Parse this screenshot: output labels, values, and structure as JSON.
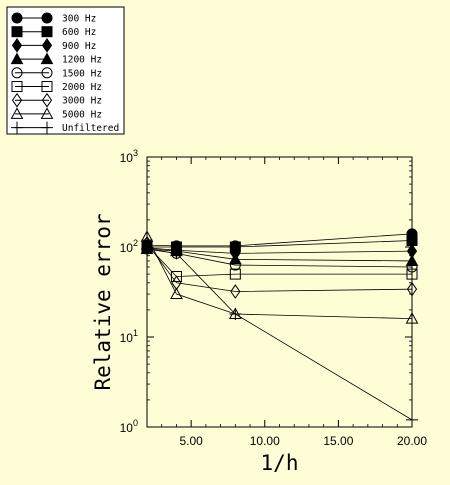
{
  "chart_data": {
    "type": "line",
    "xlabel": "1/h",
    "ylabel": "Relative error",
    "xlim": [
      2,
      20
    ],
    "ylim": [
      1,
      1000
    ],
    "y_scale": "log",
    "x_ticks": [
      5,
      10,
      15,
      20
    ],
    "x_tick_labels": [
      "5.00",
      "10.00",
      "15.00",
      "20.00"
    ],
    "y_ticks": [
      1,
      10,
      100,
      1000
    ],
    "y_tick_base": "10",
    "y_tick_exponents": [
      "0",
      "1",
      "2",
      "3"
    ],
    "grid": false,
    "legend_position": "top-left",
    "x": [
      2,
      4,
      8,
      20
    ],
    "series": [
      {
        "name": "300 Hz",
        "marker": "filled-circle",
        "values": [
          105,
          103,
          103,
          140
        ]
      },
      {
        "name": "600 Hz",
        "marker": "filled-square",
        "values": [
          100,
          100,
          100,
          118
        ]
      },
      {
        "name": "900 Hz",
        "marker": "filled-diamond",
        "values": [
          98,
          92,
          85,
          90
        ]
      },
      {
        "name": "1200 Hz",
        "marker": "filled-triangle",
        "values": [
          95,
          90,
          73,
          70
        ]
      },
      {
        "name": "1500 Hz",
        "marker": "open-circle",
        "values": [
          95,
          85,
          63,
          60
        ]
      },
      {
        "name": "2000 Hz",
        "marker": "open-square",
        "values": [
          105,
          47,
          50,
          50
        ]
      },
      {
        "name": "3000 Hz",
        "marker": "open-diamond",
        "values": [
          110,
          40,
          32,
          34
        ]
      },
      {
        "name": "5000 Hz",
        "marker": "open-triangle",
        "values": [
          130,
          30,
          18,
          16
        ]
      },
      {
        "name": "Unfiltered",
        "marker": "plus",
        "values": [
          95,
          85,
          18,
          1.2
        ]
      }
    ]
  }
}
